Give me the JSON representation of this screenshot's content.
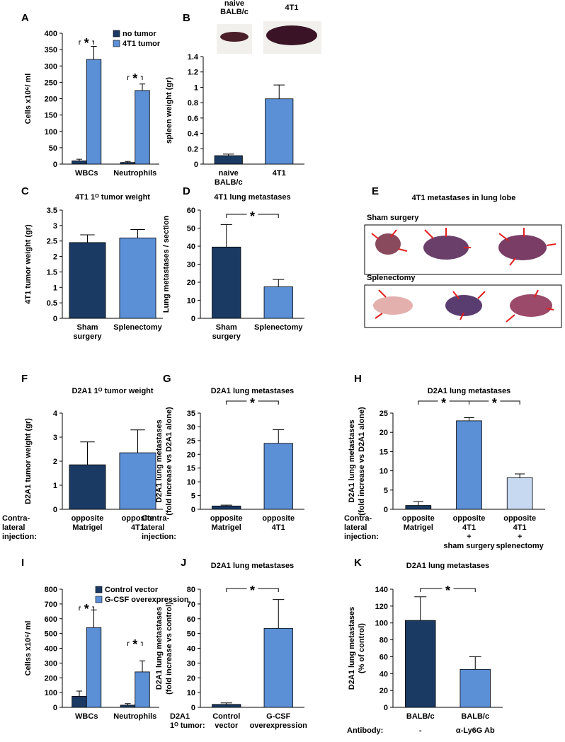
{
  "chart_data": [
    {
      "panel": "A",
      "type": "bar",
      "ylabel": "Cells x10⁶/ ml",
      "categories": [
        "WBCs",
        "Neutrophils"
      ],
      "series": [
        {
          "name": "no tumor",
          "color": "#1b3a63",
          "values": [
            10,
            5
          ],
          "errors": [
            5,
            3
          ]
        },
        {
          "name": "4T1 tumor",
          "color": "#5b8fd6",
          "values": [
            320,
            225
          ],
          "errors": [
            40,
            20
          ]
        }
      ],
      "ylim": [
        0,
        400
      ],
      "yticks": [
        0,
        50,
        100,
        150,
        200,
        250,
        300,
        350,
        400
      ],
      "annotations": [
        "*",
        "*"
      ]
    },
    {
      "panel": "B",
      "type": "bar",
      "image_labels": [
        [
          "naive",
          "BALB/c"
        ],
        "4T1"
      ],
      "ylabel": "spleen weight (gr)",
      "categories": [
        [
          "naive",
          "BALB/c"
        ],
        "4T1"
      ],
      "values": [
        0.11,
        0.85
      ],
      "errors": [
        0.02,
        0.18
      ],
      "colors": [
        "#1b3a63",
        "#5b8fd6"
      ],
      "ylim": [
        0,
        1.4
      ],
      "yticks": [
        0,
        0.2,
        0.4,
        0.6,
        0.8,
        1,
        1.2,
        1.4
      ]
    },
    {
      "panel": "C",
      "type": "bar",
      "title": "4T1 1ᴼ tumor weight",
      "ylabel": "4T1 tumor weight (gr)",
      "categories": [
        [
          "Sham",
          "surgery"
        ],
        "Splenectomy"
      ],
      "values": [
        2.45,
        2.6
      ],
      "errors": [
        0.25,
        0.27
      ],
      "colors": [
        "#1b3a63",
        "#5b8fd6"
      ],
      "ylim": [
        0,
        3.5
      ],
      "yticks": [
        0,
        0.5,
        1,
        1.5,
        2,
        2.5,
        3,
        3.5
      ]
    },
    {
      "panel": "D",
      "type": "bar",
      "title": "4T1 lung metastases",
      "ylabel": "Lung metastases / section",
      "categories": [
        [
          "Sham",
          "surgery"
        ],
        "Splenectomy"
      ],
      "values": [
        39.5,
        17.5
      ],
      "errors": [
        12.5,
        4
      ],
      "colors": [
        "#1b3a63",
        "#5b8fd6"
      ],
      "ylim": [
        0,
        60
      ],
      "yticks": [
        0,
        10,
        20,
        30,
        40,
        50,
        60
      ],
      "annotations": [
        "*"
      ]
    },
    {
      "panel": "F",
      "type": "bar",
      "title": "D2A1 1ᴼ tumor weight",
      "ylabel": "D2A1 tumor weight  (gr)",
      "x_prefix": [
        "Contra-",
        "lateral",
        "injection:"
      ],
      "categories": [
        [
          "opposite",
          "Matrigel"
        ],
        [
          "opposite",
          "4T1"
        ]
      ],
      "values": [
        1.85,
        2.35
      ],
      "errors": [
        0.95,
        0.95
      ],
      "colors": [
        "#1b3a63",
        "#5b8fd6"
      ],
      "ylim": [
        0,
        4
      ],
      "yticks": [
        0,
        1,
        2,
        3,
        4
      ]
    },
    {
      "panel": "G",
      "type": "bar",
      "title": "D2A1 lung metastases",
      "ylabel": [
        "D2A1  lung metastases",
        "(fold increase vs D2A1 alone)"
      ],
      "x_prefix": [
        "Contra-",
        "lateral",
        "injection:"
      ],
      "categories": [
        [
          "opposite",
          "Matrigel"
        ],
        [
          "opposite",
          "4T1"
        ]
      ],
      "values": [
        1.2,
        24
      ],
      "errors": [
        0.3,
        5
      ],
      "colors": [
        "#1b3a63",
        "#5b8fd6"
      ],
      "ylim": [
        0,
        35
      ],
      "yticks": [
        0,
        5,
        10,
        15,
        20,
        25,
        30,
        35
      ],
      "annotations": [
        "*"
      ]
    },
    {
      "panel": "H",
      "type": "bar",
      "title": "D2A1 lung metastases",
      "ylabel": [
        "D2A1 lung metastases",
        "(fold increase vs D2A1 alone)"
      ],
      "x_prefix": [
        "Contra-",
        "lateral",
        "injection:"
      ],
      "categories": [
        [
          "opposite",
          "Matrigel"
        ],
        [
          "opposite",
          "4T1",
          "+",
          "sham surgery"
        ],
        [
          "opposite",
          "4T1",
          "+",
          "splenectomy"
        ]
      ],
      "values": [
        1,
        23,
        8.2
      ],
      "errors": [
        1,
        0.8,
        1
      ],
      "colors": [
        "#1b3a63",
        "#5b8fd6",
        "#c6d9f0"
      ],
      "ylim": [
        0,
        25
      ],
      "yticks": [
        0,
        5,
        10,
        15,
        20,
        25
      ],
      "annotations": [
        "*",
        "*"
      ]
    },
    {
      "panel": "I",
      "type": "bar",
      "ylabel": "Cellss x10⁶/ ml",
      "categories": [
        "WBCs",
        "Neutrophils"
      ],
      "series": [
        {
          "name": "Control vector",
          "color": "#1b3a63",
          "values": [
            75,
            15
          ],
          "errors": [
            35,
            10
          ]
        },
        {
          "name": "G-CSF overexpression",
          "color": "#5b8fd6",
          "values": [
            540,
            240
          ],
          "errors": [
            120,
            75
          ]
        }
      ],
      "ylim": [
        0,
        800
      ],
      "yticks": [
        0,
        100,
        200,
        300,
        400,
        500,
        600,
        700,
        800
      ],
      "annotations": [
        "*",
        "*"
      ]
    },
    {
      "panel": "J",
      "type": "bar",
      "title": "D2A1 lung metastases",
      "ylabel": [
        "D2A1  lung metastases",
        "(fold increase vs control)"
      ],
      "x_prefix": [
        "D2A1",
        "1ᴼ tumor:"
      ],
      "categories": [
        [
          "Control",
          "vector"
        ],
        [
          "G-CSF",
          "overexpression"
        ]
      ],
      "values": [
        2,
        53.5
      ],
      "errors": [
        1,
        19.5
      ],
      "colors": [
        "#1b3a63",
        "#5b8fd6"
      ],
      "ylim": [
        0,
        80
      ],
      "yticks": [
        0,
        10,
        20,
        30,
        40,
        50,
        60,
        70,
        80
      ],
      "annotations": [
        "*"
      ]
    },
    {
      "panel": "K",
      "type": "bar",
      "title": "D2A1 lung metastases",
      "ylabel": [
        "D2A1  lung metastases",
        "(% of control)"
      ],
      "categories": [
        "BALB/c",
        "BALB/c"
      ],
      "x_sublabel_prefix": "Antibody:",
      "x_sublabels": [
        "-",
        "α-Ly6G Ab"
      ],
      "values": [
        103,
        45
      ],
      "errors": [
        28,
        15
      ],
      "colors": [
        "#1b3a63",
        "#5b8fd6"
      ],
      "ylim": [
        0,
        140
      ],
      "yticks": [
        0,
        20,
        40,
        60,
        80,
        100,
        120,
        140
      ],
      "annotations": [
        "*"
      ]
    }
  ],
  "panel_e": {
    "panel": "E",
    "title": "4T1 metastases in lung lobe",
    "groups": [
      "Sham surgery",
      "Splenectomy"
    ]
  }
}
